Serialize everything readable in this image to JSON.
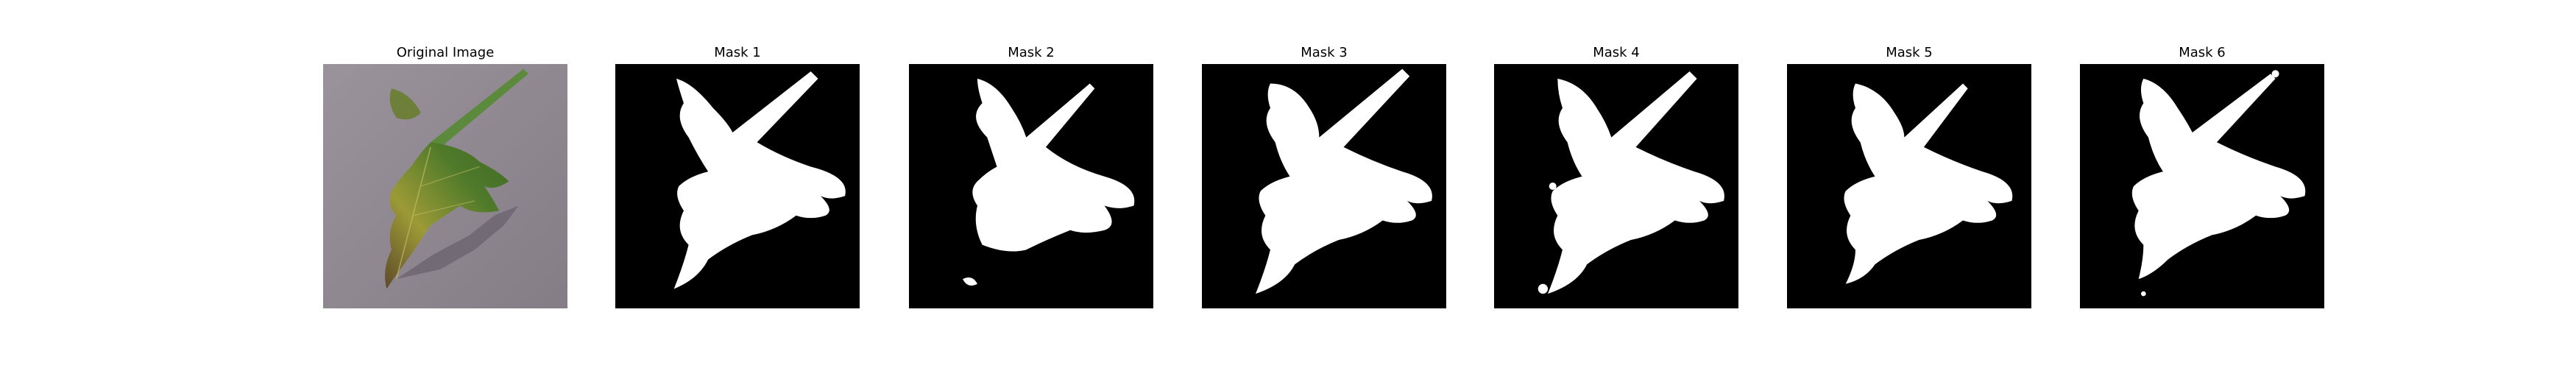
{
  "panels": [
    {
      "title": "Original Image",
      "kind": "photo",
      "icon": "leaf-photo"
    },
    {
      "title": "Mask 1",
      "kind": "mask",
      "icon": "leaf-mask"
    },
    {
      "title": "Mask 2",
      "kind": "mask",
      "icon": "leaf-mask"
    },
    {
      "title": "Mask 3",
      "kind": "mask",
      "icon": "leaf-mask"
    },
    {
      "title": "Mask 4",
      "kind": "mask",
      "icon": "leaf-mask"
    },
    {
      "title": "Mask 5",
      "kind": "mask",
      "icon": "leaf-mask"
    },
    {
      "title": "Mask 6",
      "kind": "mask",
      "icon": "leaf-mask"
    }
  ],
  "colors": {
    "mask_background": "#000000",
    "mask_foreground": "#ffffff",
    "photo_background": "#8f8890",
    "leaf_green": "#4f7a2a",
    "leaf_yellow": "#9c9a36",
    "leaf_brown": "#5e4a2a",
    "stem_green": "#5c8a3c"
  }
}
